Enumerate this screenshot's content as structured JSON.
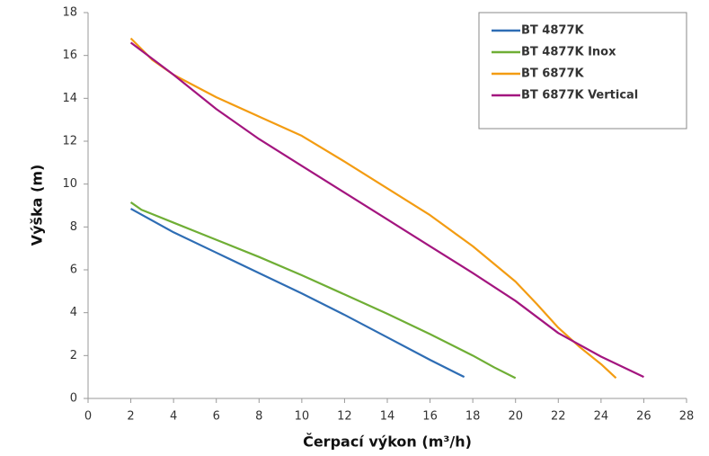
{
  "chart_data": {
    "type": "line",
    "x_label": "Čerpací výkon (m³/h)",
    "y_label": "Výška (m)",
    "xlim": [
      0,
      28
    ],
    "xticks": [
      0,
      2,
      4,
      6,
      8,
      10,
      12,
      14,
      16,
      18,
      20,
      22,
      24,
      26,
      28
    ],
    "ylim": [
      0,
      18
    ],
    "yticks": [
      0,
      2,
      4,
      6,
      8,
      10,
      12,
      14,
      16,
      18
    ],
    "legend": "top-right",
    "series": [
      {
        "name": "BT 4877K",
        "color": "#2e6db4",
        "x": [
          2,
          4,
          6,
          8,
          10,
          12,
          14,
          16,
          17.6
        ],
        "values": [
          8.85,
          7.75,
          6.8,
          5.85,
          4.9,
          3.9,
          2.85,
          1.8,
          1.0
        ]
      },
      {
        "name": "BT 4877K Inox",
        "color": "#6fae35",
        "x": [
          2,
          2.5,
          3,
          4,
          6,
          8,
          10,
          12,
          14,
          16,
          18,
          19,
          20
        ],
        "values": [
          9.15,
          8.8,
          8.6,
          8.2,
          7.4,
          6.6,
          5.75,
          4.85,
          3.95,
          3.0,
          2.0,
          1.45,
          0.95
        ]
      },
      {
        "name": "BT 6877K",
        "color": "#f39c12",
        "x": [
          2,
          3,
          4,
          6,
          8,
          10,
          12,
          14,
          16,
          18,
          20,
          21,
          22,
          23,
          24,
          24.7
        ],
        "values": [
          16.8,
          15.8,
          15.1,
          14.05,
          13.15,
          12.25,
          11.05,
          9.8,
          8.55,
          7.1,
          5.45,
          4.4,
          3.3,
          2.4,
          1.6,
          0.95
        ]
      },
      {
        "name": "BT 6877K Vertical",
        "color": "#a3157f",
        "x": [
          2,
          4,
          6,
          8,
          10,
          12,
          14,
          16,
          18,
          20,
          22,
          24,
          26
        ],
        "values": [
          16.6,
          15.1,
          13.5,
          12.1,
          10.85,
          9.6,
          8.35,
          7.1,
          5.85,
          4.55,
          3.05,
          1.95,
          1.0
        ]
      }
    ]
  }
}
